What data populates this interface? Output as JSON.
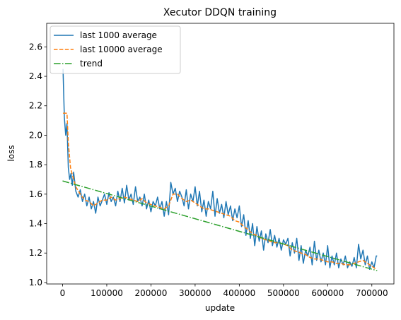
{
  "chart_data": {
    "type": "line",
    "title": "Xecutor DDQN training",
    "xlabel": "update",
    "ylabel": "loss",
    "xlim": [
      -36000,
      750000
    ],
    "ylim": [
      0.99,
      2.76
    ],
    "xticks": [
      0,
      100000,
      200000,
      300000,
      400000,
      500000,
      600000,
      700000
    ],
    "xtick_labels": [
      "0",
      "100000",
      "200000",
      "300000",
      "400000",
      "500000",
      "600000",
      "700000"
    ],
    "yticks": [
      1.0,
      1.2,
      1.4,
      1.6,
      1.8,
      2.0,
      2.2,
      2.4,
      2.6
    ],
    "ytick_labels": [
      "1.0",
      "1.2",
      "1.4",
      "1.6",
      "1.8",
      "2.0",
      "2.2",
      "2.4",
      "2.6"
    ],
    "legend_position": "top-left",
    "grid": false,
    "series": [
      {
        "name": "last 1000 average",
        "color": "#1f77b4",
        "style": "solid",
        "x": [
          1000,
          4000,
          7000,
          10000,
          13000,
          16000,
          19000,
          22000,
          25000,
          30000,
          35000,
          40000,
          45000,
          50000,
          55000,
          60000,
          65000,
          70000,
          75000,
          80000,
          85000,
          90000,
          95000,
          100000,
          105000,
          110000,
          115000,
          120000,
          125000,
          130000,
          135000,
          140000,
          145000,
          150000,
          155000,
          160000,
          165000,
          170000,
          175000,
          180000,
          185000,
          190000,
          195000,
          200000,
          205000,
          210000,
          215000,
          220000,
          225000,
          230000,
          235000,
          240000,
          245000,
          250000,
          255000,
          260000,
          265000,
          270000,
          275000,
          280000,
          285000,
          290000,
          295000,
          300000,
          305000,
          310000,
          315000,
          320000,
          325000,
          330000,
          335000,
          340000,
          345000,
          350000,
          355000,
          360000,
          365000,
          370000,
          375000,
          380000,
          385000,
          390000,
          395000,
          400000,
          405000,
          410000,
          415000,
          420000,
          425000,
          430000,
          435000,
          440000,
          445000,
          450000,
          455000,
          460000,
          465000,
          470000,
          475000,
          480000,
          485000,
          490000,
          495000,
          500000,
          505000,
          510000,
          515000,
          520000,
          525000,
          530000,
          535000,
          540000,
          545000,
          550000,
          555000,
          560000,
          565000,
          570000,
          575000,
          580000,
          585000,
          590000,
          595000,
          600000,
          605000,
          610000,
          615000,
          620000,
          625000,
          630000,
          635000,
          640000,
          645000,
          650000,
          655000,
          660000,
          665000,
          670000,
          675000,
          680000,
          685000,
          690000,
          695000,
          700000,
          705000,
          710000,
          712000
        ],
        "y": [
          2.45,
          2.12,
          2.0,
          2.08,
          1.78,
          1.7,
          1.74,
          1.66,
          1.75,
          1.62,
          1.58,
          1.63,
          1.55,
          1.6,
          1.52,
          1.58,
          1.5,
          1.55,
          1.47,
          1.58,
          1.52,
          1.56,
          1.6,
          1.53,
          1.61,
          1.55,
          1.58,
          1.52,
          1.62,
          1.55,
          1.64,
          1.54,
          1.66,
          1.56,
          1.6,
          1.53,
          1.65,
          1.55,
          1.58,
          1.52,
          1.6,
          1.5,
          1.56,
          1.48,
          1.55,
          1.52,
          1.58,
          1.5,
          1.55,
          1.45,
          1.55,
          1.46,
          1.68,
          1.6,
          1.64,
          1.55,
          1.62,
          1.58,
          1.52,
          1.63,
          1.5,
          1.6,
          1.55,
          1.65,
          1.52,
          1.62,
          1.48,
          1.56,
          1.45,
          1.55,
          1.5,
          1.62,
          1.45,
          1.57,
          1.47,
          1.53,
          1.44,
          1.55,
          1.46,
          1.52,
          1.42,
          1.5,
          1.44,
          1.52,
          1.38,
          1.46,
          1.32,
          1.42,
          1.3,
          1.4,
          1.25,
          1.38,
          1.28,
          1.35,
          1.22,
          1.33,
          1.27,
          1.36,
          1.25,
          1.32,
          1.24,
          1.3,
          1.22,
          1.29,
          1.26,
          1.3,
          1.18,
          1.27,
          1.2,
          1.3,
          1.15,
          1.25,
          1.13,
          1.22,
          1.18,
          1.24,
          1.12,
          1.28,
          1.15,
          1.22,
          1.14,
          1.2,
          1.12,
          1.25,
          1.1,
          1.18,
          1.12,
          1.2,
          1.1,
          1.16,
          1.12,
          1.18,
          1.1,
          1.14,
          1.11,
          1.17,
          1.1,
          1.26,
          1.16,
          1.22,
          1.12,
          1.18,
          1.09,
          1.14,
          1.1,
          1.18,
          1.18
        ]
      },
      {
        "name": "last 10000 average",
        "color": "#ff7f0e",
        "style": "dashed",
        "x": [
          1000,
          10000,
          13000,
          18000,
          25000,
          30000,
          40000,
          50000,
          60000,
          70000,
          80000,
          90000,
          100000,
          110000,
          120000,
          130000,
          140000,
          150000,
          160000,
          170000,
          180000,
          190000,
          200000,
          210000,
          220000,
          230000,
          240000,
          250000,
          260000,
          270000,
          280000,
          290000,
          300000,
          310000,
          320000,
          330000,
          340000,
          350000,
          360000,
          370000,
          380000,
          390000,
          400000,
          410000,
          420000,
          430000,
          440000,
          450000,
          460000,
          470000,
          480000,
          490000,
          500000,
          510000,
          520000,
          530000,
          540000,
          550000,
          560000,
          570000,
          580000,
          590000,
          600000,
          610000,
          620000,
          630000,
          640000,
          650000,
          660000,
          670000,
          680000,
          690000,
          700000,
          710000
        ],
        "y": [
          2.15,
          2.15,
          1.95,
          1.78,
          1.7,
          1.65,
          1.6,
          1.56,
          1.55,
          1.52,
          1.54,
          1.56,
          1.56,
          1.58,
          1.56,
          1.57,
          1.58,
          1.57,
          1.56,
          1.55,
          1.57,
          1.54,
          1.53,
          1.52,
          1.51,
          1.5,
          1.52,
          1.6,
          1.6,
          1.57,
          1.55,
          1.56,
          1.54,
          1.52,
          1.5,
          1.5,
          1.49,
          1.48,
          1.47,
          1.46,
          1.45,
          1.42,
          1.41,
          1.38,
          1.36,
          1.33,
          1.32,
          1.3,
          1.29,
          1.28,
          1.27,
          1.27,
          1.26,
          1.25,
          1.22,
          1.21,
          1.2,
          1.19,
          1.17,
          1.16,
          1.16,
          1.15,
          1.14,
          1.14,
          1.13,
          1.13,
          1.12,
          1.12,
          1.13,
          1.14,
          1.15,
          1.13,
          1.11,
          1.09
        ]
      },
      {
        "name": "trend",
        "color": "#2ca02c",
        "style": "dashdot",
        "x": [
          0,
          712000
        ],
        "y": [
          1.69,
          1.08
        ]
      }
    ]
  }
}
